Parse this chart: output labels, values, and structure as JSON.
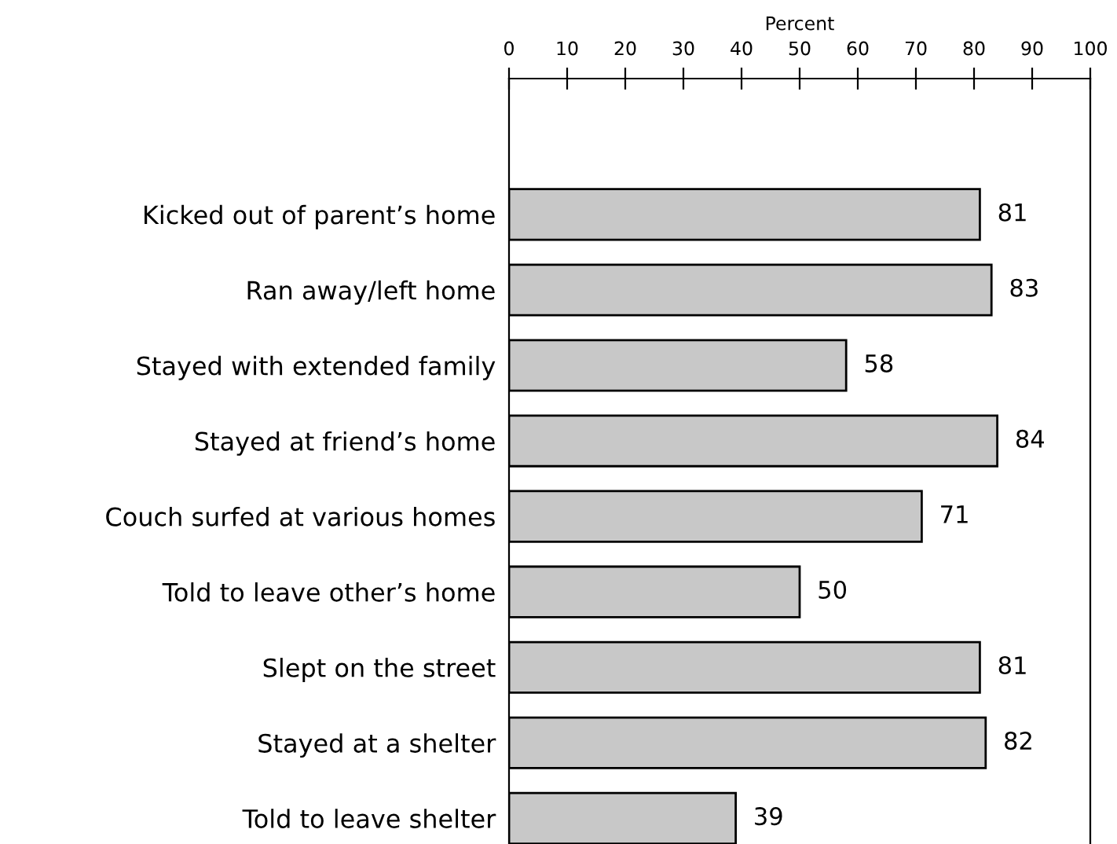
{
  "chart_data": {
    "type": "bar",
    "orientation": "horizontal",
    "xlabel": "Percent",
    "categories": [
      "Kicked out of parent’s home",
      "Ran away/left home",
      "Stayed with extended family",
      "Stayed at friend’s home",
      "Couch surfed at various homes",
      "Told to leave other’s home",
      "Slept on the street",
      "Stayed at a shelter",
      "Told to leave shelter"
    ],
    "values": [
      81,
      83,
      58,
      84,
      71,
      50,
      81,
      82,
      39
    ],
    "color": "#c8c8c8",
    "xlim": [
      0,
      100
    ],
    "xticks": [
      0,
      10,
      20,
      30,
      40,
      50,
      60,
      70,
      80,
      90,
      100
    ],
    "data_labels": true,
    "grid": false,
    "legend": false
  }
}
